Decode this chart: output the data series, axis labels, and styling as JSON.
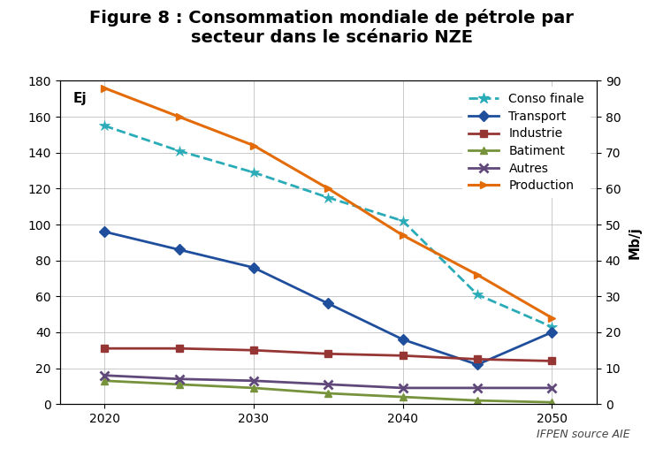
{
  "title": "Figure 8 : Consommation mondiale de pétrole par\nsecteur dans le scénario NZE",
  "years_all": [
    2020,
    2025,
    2030,
    2035,
    2040,
    2045,
    2050
  ],
  "years_main": [
    2020,
    2025,
    2030,
    2035,
    2040,
    2045,
    2050
  ],
  "conso_finale": [
    155,
    141,
    129,
    115,
    102,
    61,
    43
  ],
  "transport": [
    96,
    86,
    76,
    56,
    36,
    22,
    40
  ],
  "industrie": [
    31,
    31,
    30,
    28,
    27,
    25,
    24
  ],
  "batiment": [
    13,
    11,
    9,
    6,
    4,
    2,
    1
  ],
  "autres": [
    16,
    14,
    13,
    11,
    9,
    9,
    9
  ],
  "production_mbj": [
    88,
    80,
    72,
    60,
    47,
    36,
    24
  ],
  "ylabel_left": "Ej",
  "ylabel_right": "Mb/j",
  "source": "IFPEN source AIE",
  "ylim_left": [
    0,
    180
  ],
  "ylim_right": [
    0,
    90
  ],
  "yticks_left": [
    0,
    20,
    40,
    60,
    80,
    100,
    120,
    140,
    160,
    180
  ],
  "yticks_right": [
    0,
    10,
    20,
    30,
    40,
    50,
    60,
    70,
    80,
    90
  ],
  "xticks": [
    2020,
    2030,
    2040,
    2050
  ],
  "xlim": [
    2017,
    2053
  ],
  "colors": {
    "conso_finale": "#29ABB8",
    "transport": "#1F4E9C",
    "industrie": "#963634",
    "batiment": "#76933C",
    "autres": "#60497A",
    "production": "#E36C09"
  },
  "legend_entries": [
    "Conso finale",
    "Transport",
    "Industrie",
    "Batiment",
    "Autres",
    "Production"
  ],
  "title_fontsize": 14,
  "axis_fontsize": 11,
  "tick_fontsize": 10,
  "legend_fontsize": 10,
  "source_fontsize": 9,
  "background_color": "#FFFFFF",
  "grid_color": "#BBBBBB",
  "grid_linewidth": 0.7
}
